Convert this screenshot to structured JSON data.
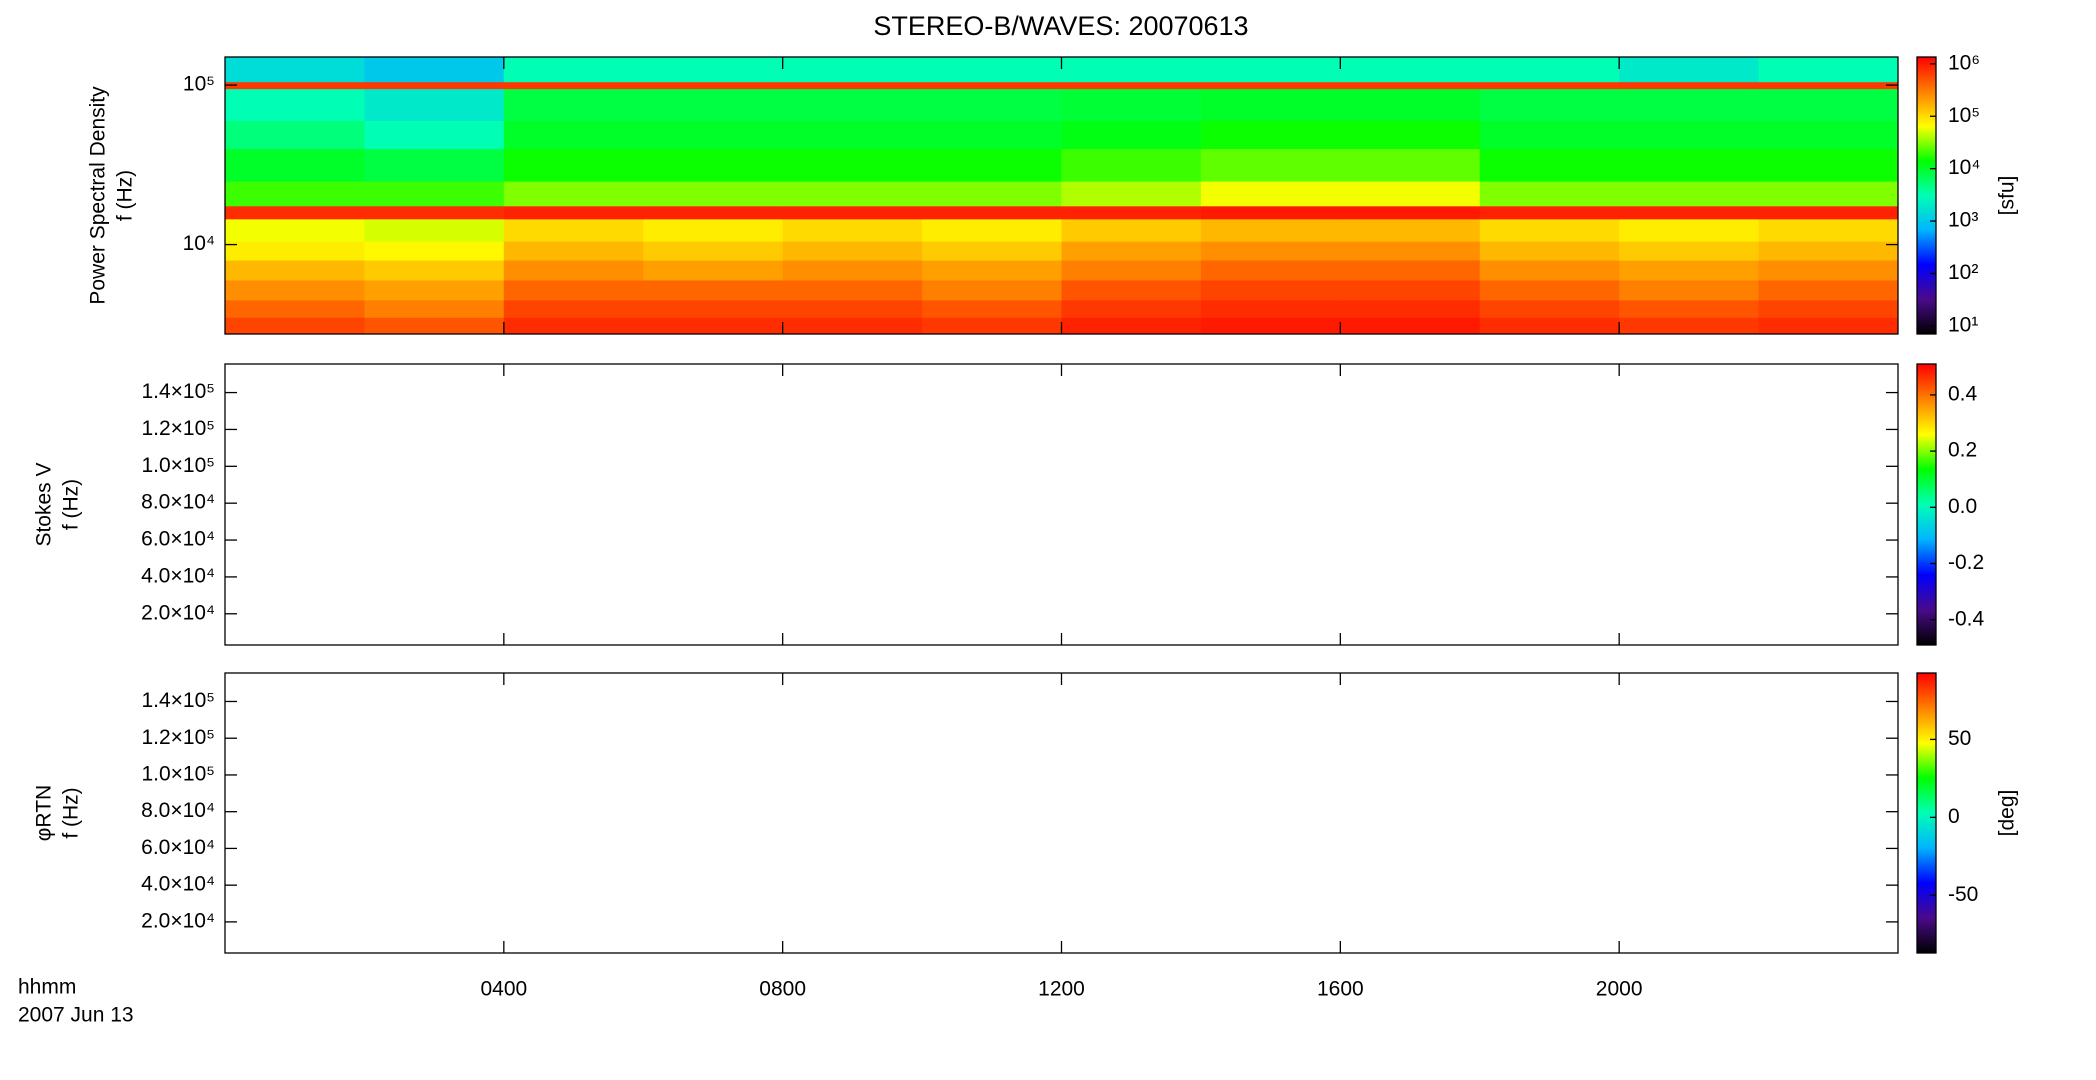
{
  "chart_data": [
    {
      "type": "heatmap",
      "title": "STEREO-B/WAVES: 20070613",
      "ylabel": [
        "Power Spectral Density",
        "f (Hz)"
      ],
      "xlim": [
        0,
        24
      ],
      "ylim": [
        2750,
        150000
      ],
      "ylog": true,
      "xticks": [
        {
          "value": 4,
          "label": "0400"
        },
        {
          "value": 8,
          "label": "0800"
        },
        {
          "value": 12,
          "label": "1200"
        },
        {
          "value": 16,
          "label": "1600"
        },
        {
          "value": 20,
          "label": "2000"
        }
      ],
      "yticks": [
        {
          "value": 10000,
          "label": "10⁴"
        },
        {
          "value": 100000,
          "label": "10⁵"
        }
      ],
      "x": [
        0,
        2,
        4,
        6,
        8,
        10,
        12,
        14,
        16,
        18,
        20,
        22,
        24
      ],
      "y": [
        2750,
        3500,
        4500,
        6000,
        8000,
        10500,
        14500,
        17500,
        25000,
        40000,
        60000,
        95000,
        105000,
        150000
      ],
      "values": [
        [
          600000,
          500000,
          800000,
          800000,
          800000,
          700000,
          900000,
          1000000,
          1000000,
          800000,
          700000,
          800000
        ],
        [
          400000,
          300000,
          600000,
          600000,
          600000,
          500000,
          700000,
          800000,
          800000,
          600000,
          500000,
          600000
        ],
        [
          250000,
          200000,
          400000,
          400000,
          400000,
          300000,
          500000,
          600000,
          600000,
          400000,
          300000,
          400000
        ],
        [
          150000,
          120000,
          250000,
          200000,
          250000,
          200000,
          300000,
          400000,
          400000,
          250000,
          200000,
          250000
        ],
        [
          80000,
          70000,
          150000,
          120000,
          150000,
          120000,
          200000,
          250000,
          250000,
          150000,
          120000,
          150000
        ],
        [
          60000,
          50000,
          100000,
          80000,
          100000,
          80000,
          120000,
          150000,
          150000,
          100000,
          80000,
          100000
        ],
        [
          800000,
          800000,
          900000,
          900000,
          900000,
          900000,
          900000,
          1000000,
          1000000,
          900000,
          900000,
          900000
        ],
        [
          20000,
          20000,
          30000,
          30000,
          30000,
          30000,
          40000,
          60000,
          60000,
          30000,
          30000,
          30000
        ],
        [
          10000,
          8000,
          15000,
          15000,
          15000,
          15000,
          20000,
          25000,
          25000,
          15000,
          15000,
          15000
        ],
        [
          5000,
          3000,
          10000,
          10000,
          10000,
          10000,
          12000,
          15000,
          15000,
          10000,
          10000,
          10000
        ],
        [
          3000,
          2000,
          8000,
          8000,
          8000,
          8000,
          9000,
          10000,
          10000,
          8000,
          8000,
          8000
        ],
        [
          700000,
          700000,
          700000,
          700000,
          700000,
          700000,
          700000,
          700000,
          700000,
          700000,
          700000,
          700000
        ],
        [
          1500,
          1000,
          3000,
          3000,
          3000,
          3000,
          3000,
          3000,
          3000,
          3000,
          2000,
          3000
        ]
      ],
      "colorbar": {
        "lim": [
          7,
          1350000
        ],
        "log": true,
        "label": "[sfu]",
        "ticks": [
          {
            "value": 10,
            "label": "10¹"
          },
          {
            "value": 100,
            "label": "10²"
          },
          {
            "value": 1000,
            "label": "10³"
          },
          {
            "value": 10000,
            "label": "10⁴"
          },
          {
            "value": 100000,
            "label": "10⁵"
          },
          {
            "value": 1000000,
            "label": "10⁶"
          }
        ],
        "colors": [
          "#000000",
          "#4a0a8a",
          "#0000ff",
          "#00b4ff",
          "#00ffb4",
          "#00ff00",
          "#ffff00",
          "#ff8000",
          "#ff0000"
        ]
      }
    },
    {
      "type": "heatmap",
      "ylabel": [
        "Stokes V",
        "f (Hz)"
      ],
      "xlim": [
        0,
        24
      ],
      "ylim": [
        3070,
        155500
      ],
      "ylog": false,
      "xticks": [
        {
          "value": 4,
          "label": "0400"
        },
        {
          "value": 8,
          "label": "0800"
        },
        {
          "value": 12,
          "label": "1200"
        },
        {
          "value": 16,
          "label": "1600"
        },
        {
          "value": 20,
          "label": "2000"
        }
      ],
      "yticks": [
        {
          "value": 20000,
          "label": "2.0×10⁴"
        },
        {
          "value": 40000,
          "label": "4.0×10⁴"
        },
        {
          "value": 60000,
          "label": "6.0×10⁴"
        },
        {
          "value": 80000,
          "label": "8.0×10⁴"
        },
        {
          "value": 100000,
          "label": "1.0×10⁵"
        },
        {
          "value": 120000,
          "label": "1.2×10⁵"
        },
        {
          "value": 140000,
          "label": "1.4×10⁵"
        }
      ],
      "colorbar": {
        "lim": [
          -0.49,
          0.51
        ],
        "log": false,
        "ticks": [
          -0.4,
          -0.2,
          {
            "value": 0,
            "label": "0.0"
          },
          0.2,
          0.4
        ],
        "colors": [
          "#000000",
          "#4a0a8a",
          "#0000ff",
          "#00b4ff",
          "#00ffb4",
          "#00ff00",
          "#ffff00",
          "#ff8000",
          "#ff0000"
        ]
      }
    },
    {
      "type": "heatmap",
      "ylabel": [
        "φRTN",
        "f (Hz)"
      ],
      "xlim": [
        0,
        24
      ],
      "ylim": [
        3070,
        155500
      ],
      "ylog": false,
      "xticks": [
        {
          "value": 4,
          "label": "0400"
        },
        {
          "value": 8,
          "label": "0800"
        },
        {
          "value": 12,
          "label": "1200"
        },
        {
          "value": 16,
          "label": "1600"
        },
        {
          "value": 20,
          "label": "2000"
        }
      ],
      "yticks": [
        {
          "value": 20000,
          "label": "2.0×10⁴"
        },
        {
          "value": 40000,
          "label": "4.0×10⁴"
        },
        {
          "value": 60000,
          "label": "6.0×10⁴"
        },
        {
          "value": 80000,
          "label": "8.0×10⁴"
        },
        {
          "value": 100000,
          "label": "1.0×10⁵"
        },
        {
          "value": 120000,
          "label": "1.2×10⁵"
        },
        {
          "value": 140000,
          "label": "1.4×10⁵"
        }
      ],
      "xlabel": "hhmm",
      "date_label": "2007 Jun 13",
      "colorbar": {
        "lim": [
          -87,
          92.6
        ],
        "log": false,
        "label": "[deg]",
        "ticks": [
          -50,
          0,
          50
        ],
        "colors": [
          "#000000",
          "#4a0a8a",
          "#0000ff",
          "#00b4ff",
          "#00ffb4",
          "#00ff00",
          "#ffff00",
          "#ff8000",
          "#ff0000"
        ]
      }
    }
  ]
}
